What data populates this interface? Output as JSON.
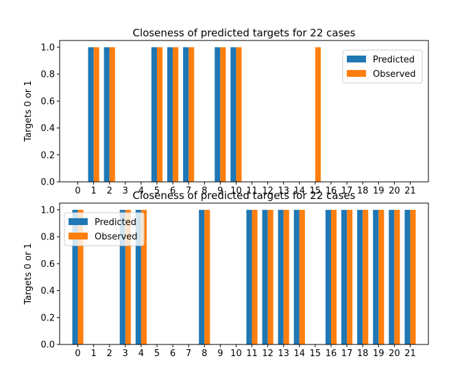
{
  "colors": {
    "predicted": "#1f77b4",
    "observed": "#ff7f0e"
  },
  "chart_data": [
    {
      "type": "bar",
      "title": "Closeness of predicted targets for 22 cases",
      "xlabel": "",
      "ylabel": "Targets 0 or 1",
      "categories": [
        "0",
        "1",
        "2",
        "3",
        "4",
        "5",
        "6",
        "7",
        "8",
        "9",
        "10",
        "11",
        "12",
        "13",
        "14",
        "15",
        "16",
        "17",
        "18",
        "19",
        "20",
        "21"
      ],
      "ylim": [
        0,
        1.05
      ],
      "yticks": [
        "0.0",
        "0.2",
        "0.4",
        "0.6",
        "0.8",
        "1.0"
      ],
      "legend_position": "top-right",
      "series": [
        {
          "name": "Predicted",
          "values": [
            0,
            1,
            1,
            0,
            0,
            1,
            1,
            1,
            0,
            1,
            1,
            0,
            0,
            0,
            0,
            0,
            0,
            0,
            0,
            0,
            0,
            0
          ]
        },
        {
          "name": "Observed",
          "values": [
            0,
            1,
            1,
            0,
            0,
            1,
            1,
            1,
            0,
            1,
            1,
            0,
            0,
            0,
            0,
            1,
            0,
            0,
            0,
            0,
            0,
            0
          ]
        }
      ]
    },
    {
      "type": "bar",
      "title": "Closeness of predicted targets for 22 cases",
      "xlabel": "",
      "ylabel": "Targets 0 or 1",
      "categories": [
        "0",
        "1",
        "2",
        "3",
        "4",
        "5",
        "6",
        "7",
        "8",
        "9",
        "10",
        "11",
        "12",
        "13",
        "14",
        "15",
        "16",
        "17",
        "18",
        "19",
        "20",
        "21"
      ],
      "ylim": [
        0,
        1.05
      ],
      "yticks": [
        "0.0",
        "0.2",
        "0.4",
        "0.6",
        "0.8",
        "1.0"
      ],
      "legend_position": "top-left",
      "series": [
        {
          "name": "Predicted",
          "values": [
            1,
            0,
            0,
            1,
            1,
            0,
            0,
            0,
            1,
            0,
            0,
            1,
            1,
            1,
            1,
            0,
            1,
            1,
            1,
            1,
            1,
            1
          ]
        },
        {
          "name": "Observed",
          "values": [
            1,
            0,
            0,
            1,
            1,
            0,
            0,
            0,
            1,
            0,
            0,
            1,
            1,
            1,
            1,
            0,
            1,
            1,
            1,
            1,
            1,
            1
          ]
        }
      ]
    }
  ]
}
